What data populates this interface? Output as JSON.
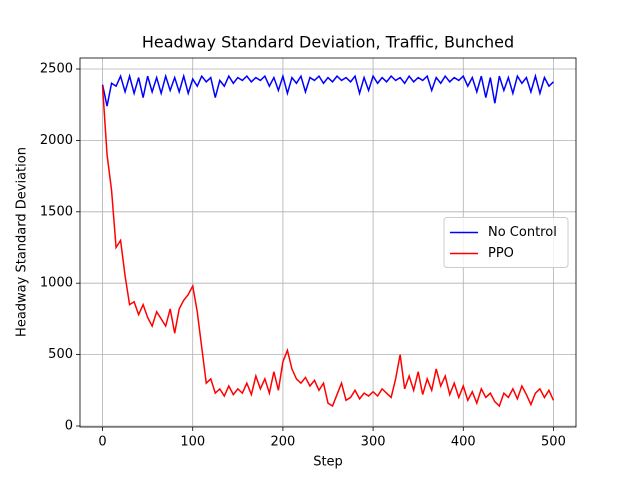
{
  "chart_data": {
    "type": "line",
    "title": "Headway Standard Deviation, Traffic, Bunched",
    "x_label": "Step",
    "y_label": "Headway Standard Deviation",
    "x": [
      0,
      5,
      10,
      15,
      20,
      25,
      30,
      35,
      40,
      45,
      50,
      55,
      60,
      65,
      70,
      75,
      80,
      85,
      90,
      95,
      100,
      105,
      110,
      115,
      120,
      125,
      130,
      135,
      140,
      145,
      150,
      155,
      160,
      165,
      170,
      175,
      180,
      185,
      190,
      195,
      200,
      205,
      210,
      215,
      220,
      225,
      230,
      235,
      240,
      245,
      250,
      255,
      260,
      265,
      270,
      275,
      280,
      285,
      290,
      295,
      300,
      305,
      310,
      315,
      320,
      325,
      330,
      335,
      340,
      345,
      350,
      355,
      360,
      365,
      370,
      375,
      380,
      385,
      390,
      395,
      400,
      405,
      410,
      415,
      420,
      425,
      430,
      435,
      440,
      445,
      450,
      455,
      460,
      465,
      470,
      475,
      480,
      485,
      490,
      495,
      500
    ],
    "series": [
      {
        "name": "No Control",
        "color": "#0000ff",
        "values": [
          2390,
          2240,
          2400,
          2380,
          2450,
          2340,
          2450,
          2330,
          2440,
          2300,
          2450,
          2340,
          2440,
          2330,
          2450,
          2350,
          2440,
          2340,
          2450,
          2330,
          2430,
          2380,
          2450,
          2410,
          2440,
          2300,
          2420,
          2380,
          2450,
          2400,
          2440,
          2420,
          2450,
          2410,
          2440,
          2420,
          2450,
          2380,
          2440,
          2350,
          2450,
          2330,
          2440,
          2400,
          2450,
          2340,
          2440,
          2420,
          2450,
          2400,
          2440,
          2410,
          2450,
          2420,
          2440,
          2410,
          2450,
          2330,
          2440,
          2350,
          2450,
          2400,
          2440,
          2410,
          2450,
          2420,
          2440,
          2400,
          2450,
          2410,
          2440,
          2420,
          2450,
          2350,
          2440,
          2400,
          2450,
          2410,
          2440,
          2420,
          2450,
          2380,
          2440,
          2340,
          2450,
          2300,
          2440,
          2260,
          2450,
          2350,
          2440,
          2330,
          2450,
          2400,
          2440,
          2340,
          2450,
          2330,
          2440,
          2380,
          2410
        ]
      },
      {
        "name": "PPO",
        "color": "#ff0000",
        "values": [
          2380,
          1900,
          1650,
          1250,
          1300,
          1050,
          850,
          870,
          780,
          850,
          760,
          700,
          800,
          750,
          700,
          820,
          650,
          820,
          880,
          920,
          980,
          800,
          550,
          300,
          330,
          230,
          260,
          210,
          280,
          220,
          260,
          230,
          300,
          220,
          350,
          260,
          330,
          230,
          380,
          250,
          450,
          530,
          400,
          330,
          300,
          340,
          280,
          320,
          250,
          300,
          160,
          140,
          220,
          300,
          180,
          200,
          250,
          190,
          230,
          210,
          240,
          210,
          260,
          230,
          200,
          330,
          500,
          260,
          350,
          250,
          380,
          220,
          330,
          250,
          400,
          280,
          350,
          220,
          300,
          200,
          280,
          180,
          240,
          160,
          260,
          200,
          230,
          170,
          140,
          230,
          200,
          260,
          190,
          280,
          220,
          150,
          230,
          260,
          200,
          250,
          180
        ]
      }
    ],
    "xlim": [
      -25,
      525
    ],
    "ylim": [
      -7,
      2577
    ],
    "xticks": [
      0,
      100,
      200,
      300,
      400,
      500
    ],
    "yticks": [
      0,
      500,
      1000,
      1500,
      2000,
      2500
    ],
    "grid": true,
    "legend": "center right"
  }
}
